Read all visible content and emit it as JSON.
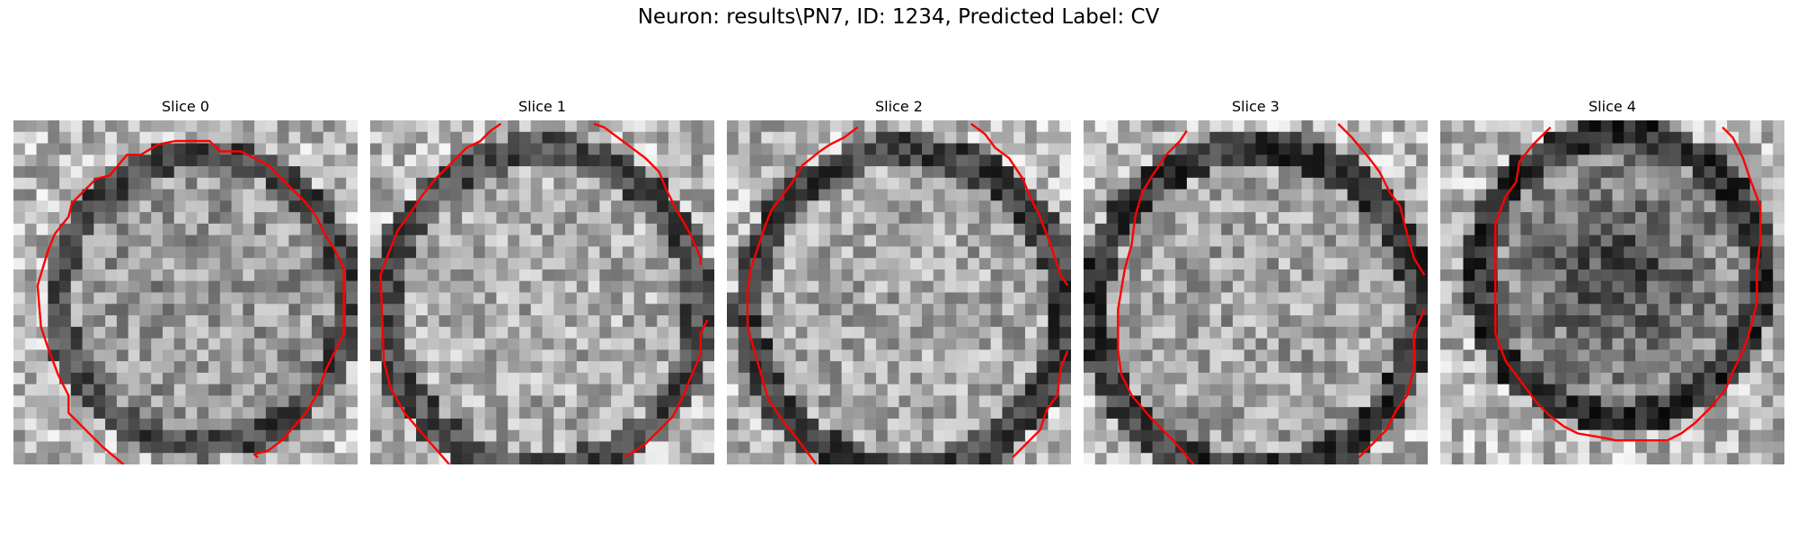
{
  "figure": {
    "title": "Neuron: results\\PN7, ID: 1234, Predicted Label: CV",
    "contour_color": "#ff0000",
    "colormap": "grayscale"
  },
  "slices": [
    {
      "title": "Slice 0"
    },
    {
      "title": "Slice 1"
    },
    {
      "title": "Slice 2"
    },
    {
      "title": "Slice 3"
    },
    {
      "title": "Slice 4"
    }
  ]
}
